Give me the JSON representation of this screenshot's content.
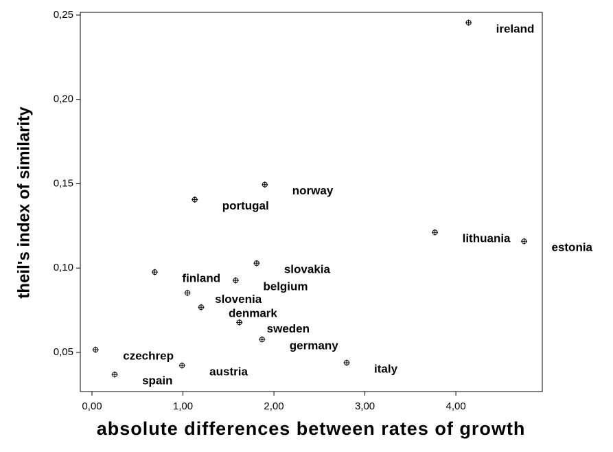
{
  "chart_data": {
    "type": "scatter",
    "xlabel": "absolute differences between rates of growth",
    "ylabel": "theil's index of similarity",
    "labels": [
      "ireland",
      "norway",
      "portugal",
      "lithuania",
      "estonia",
      "slovakia",
      "belgium",
      "finland",
      "slovenia",
      "denmark",
      "sweden",
      "germany",
      "italy",
      "czechrep",
      "spain",
      "austria"
    ],
    "x": [
      4.14,
      1.9,
      1.13,
      3.77,
      4.75,
      1.81,
      1.58,
      0.69,
      1.05,
      1.2,
      1.62,
      1.87,
      2.8,
      0.04,
      0.25,
      0.99
    ],
    "y": [
      0.2455,
      0.1495,
      0.1406,
      0.1212,
      0.1159,
      0.1029,
      0.0927,
      0.0976,
      0.0853,
      0.0768,
      0.0678,
      0.0577,
      0.0439,
      0.0516,
      0.0369,
      0.0422
    ],
    "color": "#000000",
    "xlim": [
      -0.128,
      4.95
    ],
    "ylim": [
      0.0268,
      0.2516
    ],
    "xticks": [
      {
        "value": 0,
        "label": "0,00"
      },
      {
        "value": 1,
        "label": "1,00"
      },
      {
        "value": 2,
        "label": "2,00"
      },
      {
        "value": 3,
        "label": "3,00"
      },
      {
        "value": 4,
        "label": "4,00"
      }
    ],
    "yticks": [
      {
        "value": 0.05,
        "label": "0,05"
      },
      {
        "value": 0.1,
        "label": "0,10"
      },
      {
        "value": 0.15,
        "label": "0,15"
      },
      {
        "value": 0.2,
        "label": "0,20"
      },
      {
        "value": 0.25,
        "label": "0,25"
      }
    ],
    "grid": false
  }
}
